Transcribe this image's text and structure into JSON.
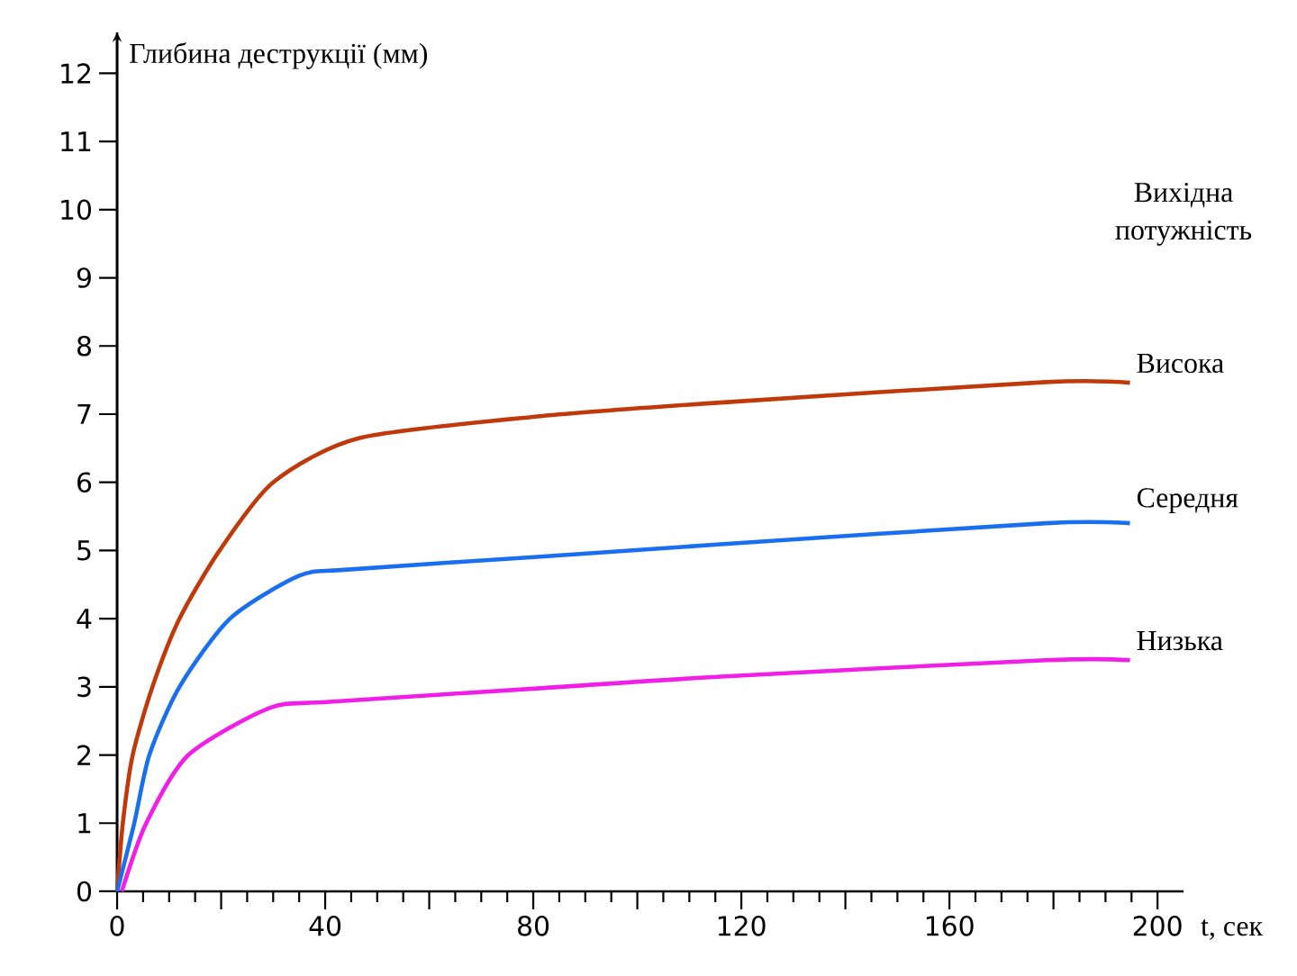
{
  "chart_data": {
    "type": "line",
    "ylabel": "Глибина деструкції (мм)",
    "xlabel": "t, сек",
    "legend_title": "Вихідна потужність",
    "legend": false,
    "xlim": [
      0,
      205
    ],
    "ylim": [
      0,
      12.6
    ],
    "xticks": [
      0,
      {
        "value": 20,
        "label": null
      },
      40,
      {
        "value": 60,
        "label": null
      },
      80,
      {
        "value": 100,
        "label": null
      },
      120,
      {
        "value": 140,
        "label": null
      },
      160,
      {
        "value": 180,
        "label": null
      },
      200
    ],
    "yticks": [
      0,
      1,
      2,
      3,
      4,
      5,
      6,
      7,
      8,
      9,
      10,
      11,
      12
    ],
    "series": [
      {
        "name": "Висока",
        "color": "#c0390b",
        "x": [
          0,
          1.1,
          3,
          6.8,
          12,
          19.7,
          30,
          46.6,
          81.4,
          116,
          178.5,
          194.7
        ],
        "values": [
          0,
          1,
          2,
          3,
          4,
          5,
          6,
          6.65,
          6.97,
          7.17,
          7.47,
          7.46
        ]
      },
      {
        "name": "Середня",
        "color": "#1a6ff0",
        "x": [
          0,
          3.3,
          6.2,
          12,
          21.7,
          35,
          44.3,
          81.4,
          116,
          178.5,
          194.7
        ],
        "values": [
          0,
          1,
          2,
          3,
          4,
          4.63,
          4.72,
          4.91,
          5.09,
          5.4,
          5.4
        ]
      },
      {
        "name": "Низька",
        "color": "#f01ee6",
        "x": [
          0.9,
          5.6,
          13.7,
          29.3,
          40.8,
          81.4,
          116,
          178.5,
          194.7
        ],
        "values": [
          0,
          1,
          2,
          2.69,
          2.78,
          2.98,
          3.15,
          3.39,
          3.39
        ]
      }
    ]
  }
}
